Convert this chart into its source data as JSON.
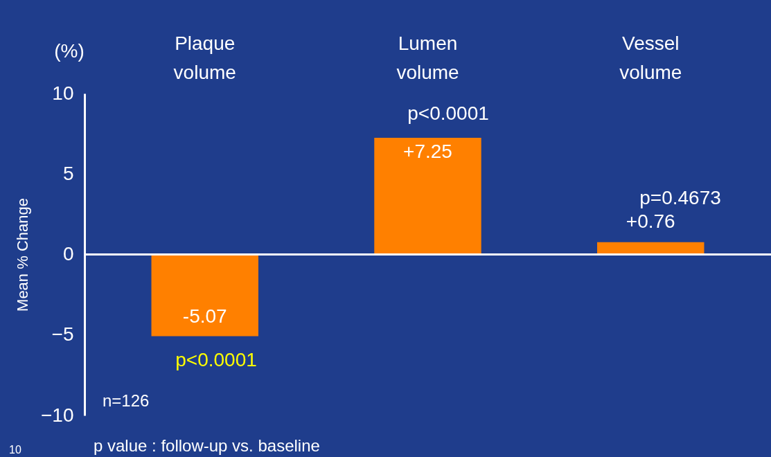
{
  "chart_data": {
    "type": "bar",
    "categories": [
      "Plaque volume",
      "Lumen volume",
      "Vessel volume"
    ],
    "values": [
      -5.07,
      7.25,
      0.76
    ],
    "value_labels": [
      "-5.07",
      "+7.25",
      "+0.76"
    ],
    "color": "#ff8000",
    "ylabel": "Mean % Change",
    "ylim": [
      -10,
      10
    ],
    "yticks": [
      -10,
      -5,
      0,
      5,
      10
    ],
    "grid": false,
    "ref_lines": [
      {
        "axis": "y",
        "value": 0,
        "color": "#ffffff"
      }
    ],
    "annotations": [
      "p<0.0001",
      "p<0.0001",
      "p=0.4673",
      "(%)",
      "n=126",
      "p value : follow-up vs. baseline",
      "10"
    ]
  }
}
